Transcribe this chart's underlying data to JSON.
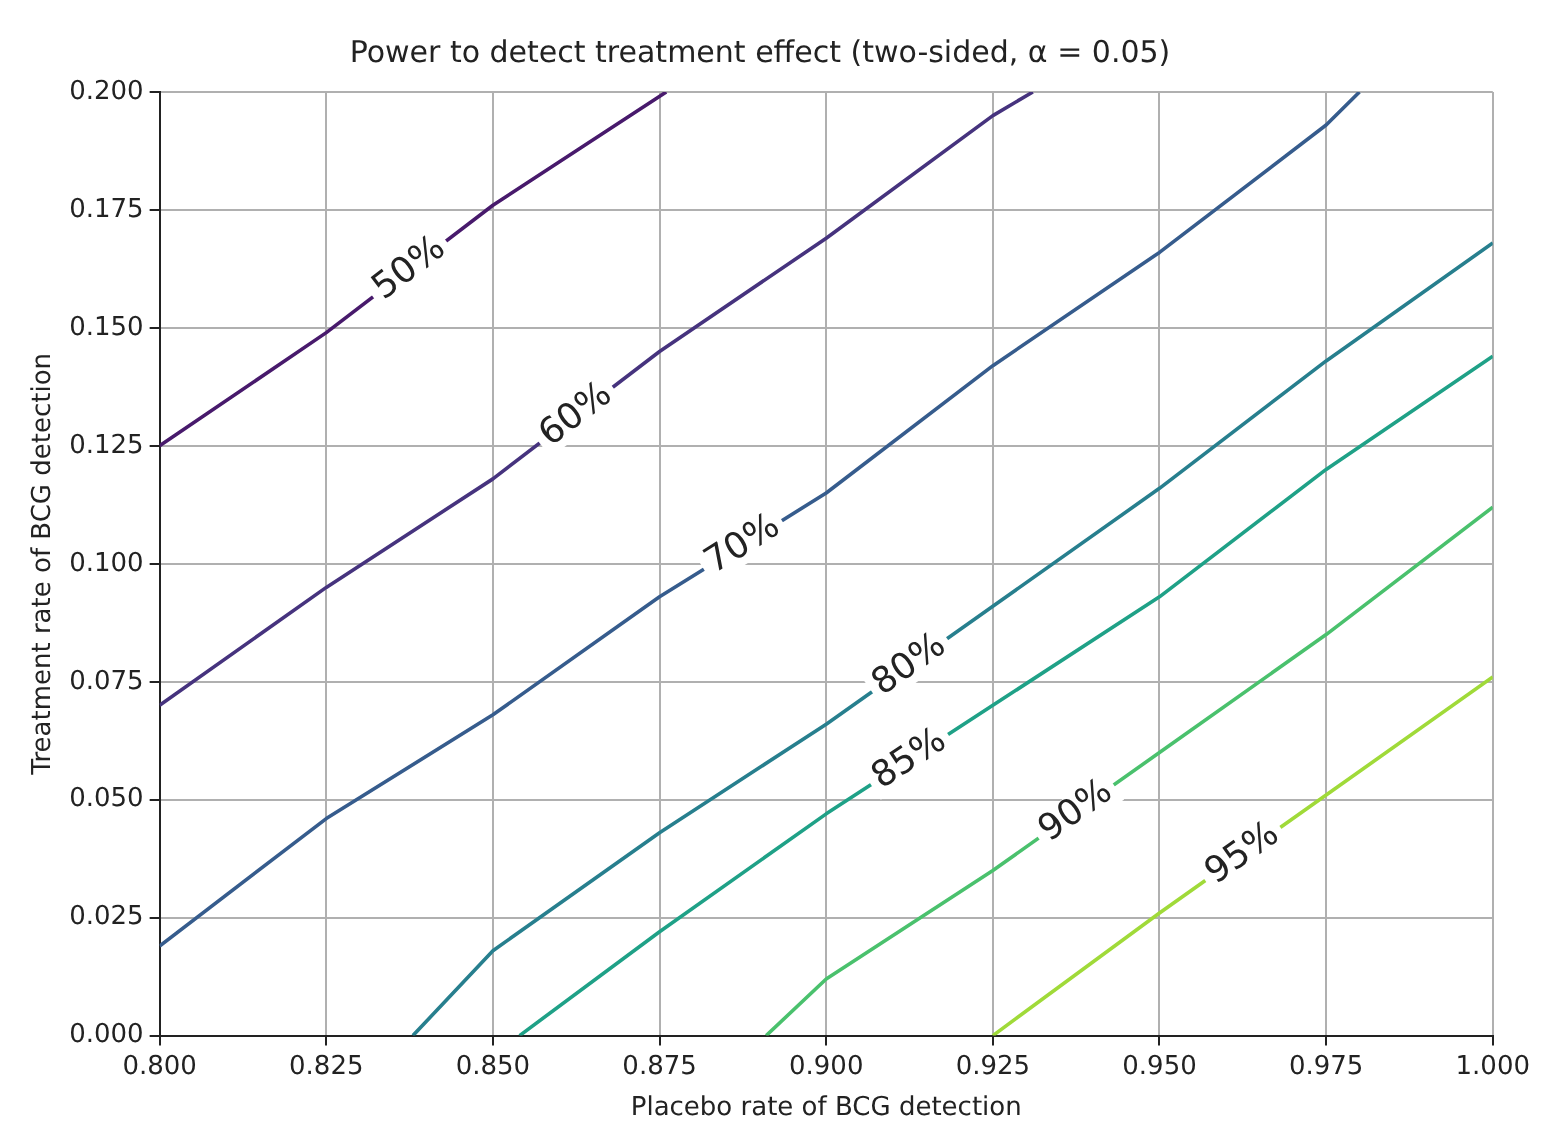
{
  "chart_data": {
    "type": "line",
    "title": "Power to detect treatment effect (two-sided, α = 0.05)",
    "xlabel": "Placebo rate of BCG detection",
    "ylabel": "Treatment rate of BCG detection",
    "xlim": [
      0.8,
      1.0
    ],
    "ylim": [
      0,
      0.2
    ],
    "xticks": [
      {
        "value": 0.8,
        "label": "0.800"
      },
      {
        "value": 0.825,
        "label": "0.825"
      },
      {
        "value": 0.85,
        "label": "0.850"
      },
      {
        "value": 0.875,
        "label": "0.875"
      },
      {
        "value": 0.9,
        "label": "0.900"
      },
      {
        "value": 0.925,
        "label": "0.925"
      },
      {
        "value": 0.95,
        "label": "0.950"
      },
      {
        "value": 0.975,
        "label": "0.975"
      },
      {
        "value": 1.0,
        "label": "1.000"
      }
    ],
    "yticks": [
      {
        "value": 0,
        "label": "0.000"
      },
      {
        "value": 0.025,
        "label": "0.025"
      },
      {
        "value": 0.05,
        "label": "0.050"
      },
      {
        "value": 0.075,
        "label": "0.075"
      },
      {
        "value": 0.1,
        "label": "0.100"
      },
      {
        "value": 0.125,
        "label": "0.125"
      },
      {
        "value": 0.15,
        "label": "0.150"
      },
      {
        "value": 0.175,
        "label": "0.175"
      },
      {
        "value": 0.2,
        "label": "0.200"
      }
    ],
    "grid": true,
    "legend": false,
    "series": [
      {
        "name": "50%",
        "color": "#481a6c",
        "x": [
          0.8,
          0.825,
          0.85,
          0.876
        ],
        "values": [
          0.125,
          0.149,
          0.176,
          0.2
        ]
      },
      {
        "name": "60%",
        "color": "#46337e",
        "x": [
          0.8,
          0.825,
          0.85,
          0.875,
          0.9,
          0.925,
          0.931
        ],
        "values": [
          0.07,
          0.095,
          0.118,
          0.145,
          0.169,
          0.195,
          0.2
        ]
      },
      {
        "name": "70%",
        "color": "#365c8d",
        "x": [
          0.8,
          0.825,
          0.85,
          0.875,
          0.9,
          0.925,
          0.95,
          0.975,
          0.98
        ],
        "values": [
          0.019,
          0.046,
          0.068,
          0.093,
          0.115,
          0.142,
          0.166,
          0.193,
          0.2
        ]
      },
      {
        "name": "80%",
        "color": "#277f8e",
        "x": [
          0.838,
          0.85,
          0.875,
          0.9,
          0.925,
          0.95,
          0.975,
          1.0
        ],
        "values": [
          0,
          0.018,
          0.043,
          0.066,
          0.091,
          0.116,
          0.143,
          0.168
        ]
      },
      {
        "name": "85%",
        "color": "#1fa187",
        "x": [
          0.854,
          0.875,
          0.9,
          0.925,
          0.95,
          0.975,
          1.0
        ],
        "values": [
          0,
          0.022,
          0.047,
          0.07,
          0.093,
          0.12,
          0.144
        ]
      },
      {
        "name": "90%",
        "color": "#4ac16d",
        "x": [
          0.891,
          0.9,
          0.925,
          0.95,
          0.975,
          1.0
        ],
        "values": [
          0,
          0.012,
          0.035,
          0.06,
          0.085,
          0.112
        ]
      },
      {
        "name": "95%",
        "color": "#a0da39",
        "x": [
          0.925,
          0.95,
          0.975,
          1.0
        ],
        "values": [
          0,
          0.026,
          0.051,
          0.076
        ]
      }
    ]
  }
}
